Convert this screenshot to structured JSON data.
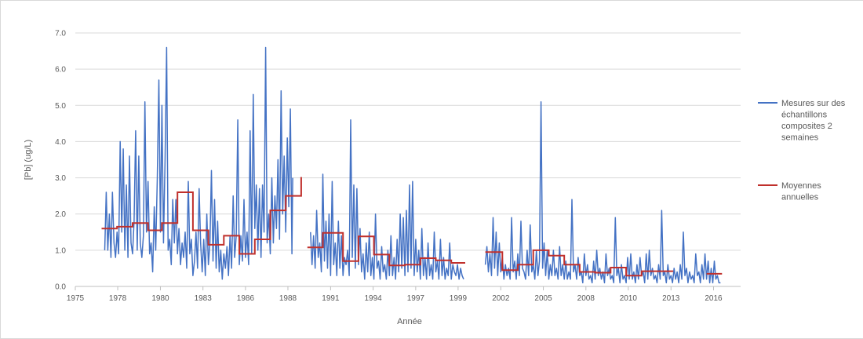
{
  "chart_data": {
    "type": "line",
    "xlabel": "Année",
    "ylabel": "[Pb] (ug/L)",
    "xlim": [
      1975,
      2018
    ],
    "ylim": [
      0,
      7
    ],
    "xticks": [
      "1975",
      "1978",
      "1980",
      "1983",
      "1986",
      "1988",
      "1991",
      "1994",
      "1997",
      "1999",
      "2002",
      "2005",
      "2008",
      "2010",
      "2013",
      "2016"
    ],
    "xtick_values": [
      1975.0,
      1977.74,
      1980.5,
      1983.25,
      1986.0,
      1988.74,
      1991.5,
      1994.25,
      1997.0,
      1999.74,
      2002.5,
      2005.25,
      2008.0,
      2010.74,
      2013.5,
      2016.25
    ],
    "yticks": [
      "0.0",
      "1.0",
      "2.0",
      "3.0",
      "4.0",
      "5.0",
      "6.0",
      "7.0"
    ],
    "ytick_values": [
      0,
      1,
      2,
      3,
      4,
      5,
      6,
      7
    ],
    "grid": "horizontal",
    "legend_position": "right",
    "series": [
      {
        "name": "Mesures sur des échantillons composites 2 semaines",
        "name_lines": [
          "Mesures sur des",
          "échantillons",
          "composites 2",
          "semaines"
        ],
        "color": "#4472c4",
        "segments": [
          {
            "x": [
              1976.9,
              1977.0,
              1977.1,
              1977.2,
              1977.3,
              1977.4,
              1977.5,
              1977.6,
              1977.7,
              1977.8,
              1977.9,
              1978.0,
              1978.1,
              1978.2,
              1978.3,
              1978.4,
              1978.5,
              1978.6,
              1978.7,
              1978.8,
              1978.9,
              1979.0,
              1979.1,
              1979.2,
              1979.3,
              1979.4,
              1979.5,
              1979.6,
              1979.7,
              1979.8,
              1979.9,
              1980.0,
              1980.1,
              1980.2,
              1980.3,
              1980.4,
              1980.5,
              1980.6,
              1980.7,
              1980.8,
              1980.9,
              1981.0,
              1981.1,
              1981.2,
              1981.3,
              1981.4,
              1981.5,
              1981.6,
              1981.7,
              1981.8,
              1981.9,
              1982.0,
              1982.1,
              1982.2,
              1982.3,
              1982.4,
              1982.5,
              1982.6,
              1982.7,
              1982.8,
              1982.9,
              1983.0,
              1983.1,
              1983.2,
              1983.3,
              1983.4,
              1983.5,
              1983.6,
              1983.7,
              1983.8,
              1983.9,
              1984.0,
              1984.1,
              1984.2,
              1984.3,
              1984.4,
              1984.5,
              1984.6,
              1984.7,
              1984.8,
              1984.9,
              1985.0,
              1985.1,
              1985.2,
              1985.3,
              1985.4,
              1985.5,
              1985.6,
              1985.7,
              1985.8,
              1985.9,
              1986.0,
              1986.1,
              1986.2,
              1986.3,
              1986.4,
              1986.5,
              1986.6,
              1986.7,
              1986.8,
              1986.9,
              1987.0,
              1987.1,
              1987.2,
              1987.3,
              1987.4,
              1987.5,
              1987.6,
              1987.7,
              1987.8,
              1987.9,
              1988.0,
              1988.1,
              1988.2,
              1988.3,
              1988.4,
              1988.5,
              1988.6,
              1988.7,
              1988.8,
              1988.9,
              1989.0,
              1989.05
            ],
            "y": [
              1.0,
              2.6,
              1.0,
              2.0,
              0.8,
              2.6,
              1.2,
              0.8,
              1.5,
              0.9,
              4.0,
              1.5,
              3.8,
              1.0,
              2.8,
              0.8,
              3.6,
              1.2,
              0.9,
              1.8,
              4.3,
              1.0,
              3.6,
              1.2,
              0.8,
              1.4,
              5.1,
              1.5,
              2.9,
              0.9,
              1.2,
              0.4,
              2.2,
              1.0,
              3.0,
              5.7,
              1.5,
              5.0,
              1.2,
              3.5,
              6.6,
              1.0,
              1.3,
              0.6,
              2.4,
              1.2,
              2.4,
              0.9,
              1.6,
              0.6,
              1.2,
              0.8,
              1.5,
              0.5,
              2.9,
              0.9,
              1.3,
              0.3,
              0.7,
              1.5,
              0.5,
              2.7,
              1.2,
              0.4,
              1.3,
              0.3,
              2.0,
              0.6,
              1.2,
              3.2,
              0.7,
              2.4,
              0.5,
              1.8,
              0.4,
              1.0,
              0.2,
              0.9,
              0.5,
              1.1,
              0.3,
              1.4,
              0.5,
              2.5,
              0.8,
              1.4,
              4.6,
              0.6,
              1.4,
              0.7,
              2.4,
              0.8,
              1.5,
              0.6,
              4.3,
              0.9,
              5.3,
              1.6,
              2.8,
              1.0,
              2.7,
              0.8,
              2.8,
              1.5,
              6.6,
              1.2,
              2.0,
              0.9,
              3.0,
              1.2,
              2.5,
              1.6,
              3.5,
              1.3,
              5.4,
              2.0,
              3.6,
              1.5,
              4.1,
              2.2,
              4.9,
              0.9,
              3.0
            ],
            "comment": ""
          },
          {
            "x": [
              1990.2,
              1990.3,
              1990.4,
              1990.5,
              1990.6,
              1990.7,
              1990.8,
              1990.9,
              1991.0,
              1991.1,
              1991.2,
              1991.3,
              1991.4,
              1991.5,
              1991.6,
              1991.7,
              1991.8,
              1991.9,
              1992.0,
              1992.1,
              1992.2,
              1992.3,
              1992.4,
              1992.5,
              1992.6,
              1992.7,
              1992.8,
              1992.9,
              1993.0,
              1993.1,
              1993.2,
              1993.3,
              1993.4,
              1993.5,
              1993.6,
              1993.7,
              1993.8,
              1993.9,
              1994.0,
              1994.1,
              1994.2,
              1994.3,
              1994.4,
              1994.5,
              1994.6,
              1994.7,
              1994.8,
              1994.9,
              1995.0,
              1995.1,
              1995.2,
              1995.3,
              1995.4,
              1995.5,
              1995.6,
              1995.7,
              1995.8,
              1995.9,
              1996.0,
              1996.1,
              1996.2,
              1996.3,
              1996.4,
              1996.5,
              1996.6,
              1996.7,
              1996.8,
              1996.9,
              1997.0,
              1997.1,
              1997.2,
              1997.3,
              1997.4,
              1997.5,
              1997.6,
              1997.7,
              1997.8,
              1997.9,
              1998.0,
              1998.1,
              1998.2,
              1998.3,
              1998.4,
              1998.5,
              1998.6,
              1998.7,
              1998.8,
              1998.9,
              1999.0,
              1999.1,
              1999.2,
              1999.3,
              1999.4,
              1999.5,
              1999.6,
              1999.7,
              1999.8,
              1999.9,
              2000.0,
              2000.1
            ],
            "y": [
              1.5,
              0.6,
              1.4,
              0.5,
              2.1,
              0.8,
              1.2,
              0.4,
              3.1,
              0.7,
              1.8,
              0.5,
              2.0,
              0.3,
              2.9,
              0.6,
              1.2,
              0.3,
              1.8,
              0.5,
              1.4,
              0.3,
              0.8,
              0.6,
              1.0,
              0.3,
              4.6,
              0.8,
              2.8,
              0.5,
              2.7,
              0.6,
              1.6,
              0.4,
              0.9,
              0.2,
              1.2,
              0.4,
              1.5,
              0.3,
              0.8,
              0.2,
              2.0,
              0.5,
              0.7,
              0.2,
              1.1,
              0.4,
              0.6,
              0.2,
              1.0,
              0.3,
              1.4,
              0.3,
              0.8,
              0.2,
              1.3,
              0.4,
              2.0,
              0.5,
              1.9,
              0.3,
              2.1,
              0.4,
              2.8,
              0.5,
              2.9,
              0.3,
              1.3,
              0.4,
              1.0,
              0.2,
              1.6,
              0.3,
              0.8,
              0.2,
              1.2,
              0.3,
              0.6,
              0.2,
              1.5,
              0.4,
              0.7,
              0.2,
              1.3,
              0.3,
              0.8,
              0.2,
              0.5,
              0.3,
              1.2,
              0.2,
              0.6,
              0.4,
              0.3,
              0.6,
              0.2,
              0.5,
              0.3,
              0.2
            ]
          },
          {
            "x": [
              2001.5,
              2001.6,
              2001.7,
              2001.8,
              2001.9,
              2002.0,
              2002.1,
              2002.2,
              2002.3,
              2002.4,
              2002.5,
              2002.6,
              2002.7,
              2002.8,
              2002.9,
              2003.0,
              2003.1,
              2003.2,
              2003.3,
              2003.4,
              2003.5,
              2003.6,
              2003.7,
              2003.8,
              2003.9,
              2004.0,
              2004.1,
              2004.2,
              2004.3,
              2004.4,
              2004.5,
              2004.6,
              2004.7,
              2004.8,
              2004.9,
              2005.0,
              2005.1,
              2005.2,
              2005.3,
              2005.4,
              2005.5,
              2005.6,
              2005.7,
              2005.8,
              2005.9,
              2006.0,
              2006.1,
              2006.2,
              2006.3,
              2006.4,
              2006.5,
              2006.6,
              2006.7,
              2006.8,
              2006.9,
              2007.0,
              2007.1,
              2007.2,
              2007.3,
              2007.4,
              2007.5,
              2007.6,
              2007.7,
              2007.8,
              2007.9,
              2008.0,
              2008.1,
              2008.2,
              2008.3,
              2008.4,
              2008.5,
              2008.6,
              2008.7,
              2008.8,
              2008.9,
              2009.0,
              2009.1,
              2009.2,
              2009.3,
              2009.4,
              2009.5,
              2009.6,
              2009.7,
              2009.8,
              2009.9,
              2010.0,
              2010.1,
              2010.2,
              2010.3,
              2010.4,
              2010.5,
              2010.6,
              2010.7,
              2010.8,
              2010.9,
              2011.0,
              2011.1,
              2011.2,
              2011.3,
              2011.4,
              2011.5,
              2011.6,
              2011.7,
              2011.8,
              2011.9,
              2012.0,
              2012.1,
              2012.2,
              2012.3,
              2012.4,
              2012.5,
              2012.6,
              2012.7,
              2012.8,
              2012.9,
              2013.0,
              2013.1,
              2013.2,
              2013.3,
              2013.4,
              2013.5,
              2013.6,
              2013.7,
              2013.8,
              2013.9,
              2014.0,
              2014.1,
              2014.2,
              2014.3,
              2014.4,
              2014.5,
              2014.6,
              2014.7,
              2014.8,
              2014.9,
              2015.0,
              2015.1,
              2015.2,
              2015.3,
              2015.4,
              2015.5,
              2015.6,
              2015.7,
              2015.8,
              2015.9,
              2016.0,
              2016.1,
              2016.2,
              2016.3,
              2016.4,
              2016.5,
              2016.6,
              2016.7
            ],
            "y": [
              0.6,
              1.1,
              0.4,
              0.9,
              0.3,
              1.9,
              0.5,
              1.5,
              0.3,
              1.2,
              0.4,
              0.8,
              0.2,
              0.6,
              0.3,
              0.5,
              0.2,
              1.9,
              0.4,
              0.7,
              0.2,
              0.9,
              0.3,
              1.8,
              0.5,
              0.4,
              0.2,
              1.0,
              0.3,
              1.7,
              0.4,
              0.6,
              0.2,
              1.0,
              0.3,
              0.7,
              5.1,
              0.5,
              1.2,
              0.3,
              1.0,
              0.2,
              0.6,
              0.3,
              1.0,
              0.3,
              0.5,
              0.2,
              1.1,
              0.3,
              0.6,
              0.2,
              0.7,
              0.2,
              0.4,
              0.2,
              2.4,
              0.4,
              0.6,
              0.2,
              0.8,
              0.3,
              0.4,
              0.1,
              0.9,
              0.3,
              0.6,
              0.2,
              0.3,
              0.1,
              0.7,
              0.2,
              1.0,
              0.3,
              0.5,
              0.2,
              0.4,
              0.1,
              0.9,
              0.3,
              0.5,
              0.2,
              0.3,
              0.1,
              1.9,
              0.3,
              0.5,
              0.1,
              0.6,
              0.2,
              0.3,
              0.1,
              0.8,
              0.2,
              0.9,
              0.2,
              0.4,
              0.1,
              0.6,
              0.2,
              0.8,
              0.3,
              0.4,
              0.1,
              0.9,
              0.2,
              1.0,
              0.3,
              0.5,
              0.2,
              0.3,
              0.1,
              0.6,
              0.2,
              2.1,
              0.3,
              0.4,
              0.1,
              0.6,
              0.2,
              0.3,
              0.1,
              0.5,
              0.2,
              0.4,
              0.1,
              0.6,
              0.2,
              1.5,
              0.3,
              0.5,
              0.1,
              0.4,
              0.2,
              0.3,
              0.1,
              0.9,
              0.3,
              0.4,
              0.1,
              0.6,
              0.2,
              0.9,
              0.2,
              0.7,
              0.1,
              0.5,
              0.1,
              0.7,
              0.2,
              0.3,
              0.1,
              0.1
            ]
          }
        ]
      },
      {
        "name": "Moyennes annuelles",
        "name_lines": [
          "Moyennes",
          "annuelles"
        ],
        "color": "#c0302c",
        "step_x": [
          1976.7,
          1977.7,
          1978.7,
          1979.7,
          1980.6,
          1981.6,
          1982.6,
          1983.6,
          1984.6,
          1985.6,
          1986.6,
          1987.6,
          1988.6,
          1989.6
        ],
        "step_y": [
          1.6,
          1.65,
          1.75,
          1.55,
          1.75,
          2.6,
          1.55,
          1.15,
          1.4,
          0.9,
          1.3,
          2.1,
          2.5,
          3.02
        ],
        "step_x2": [
          1990.0,
          1991.0,
          1992.3,
          1993.3,
          1994.3,
          1995.3,
          1996.3,
          1997.3,
          1998.3,
          1999.3,
          2000.2
        ],
        "step_y2": [
          1.08,
          1.48,
          0.7,
          1.38,
          0.88,
          0.58,
          0.6,
          0.78,
          0.72,
          0.65
        ],
        "step_x3": [
          2001.5,
          2002.6,
          2003.6,
          2004.6,
          2005.6,
          2006.6,
          2007.6,
          2008.6,
          2009.6,
          2010.6,
          2011.6,
          2012.6,
          2013.6
        ],
        "step_y3": [
          0.95,
          0.45,
          0.6,
          1.0,
          0.85,
          0.6,
          0.4,
          0.38,
          0.52,
          0.3,
          0.42,
          0.42,
          0.4
        ],
        "step_x4": [
          2015.8,
          2016.8
        ],
        "step_y4": [
          0.35,
          0.35
        ]
      }
    ]
  }
}
